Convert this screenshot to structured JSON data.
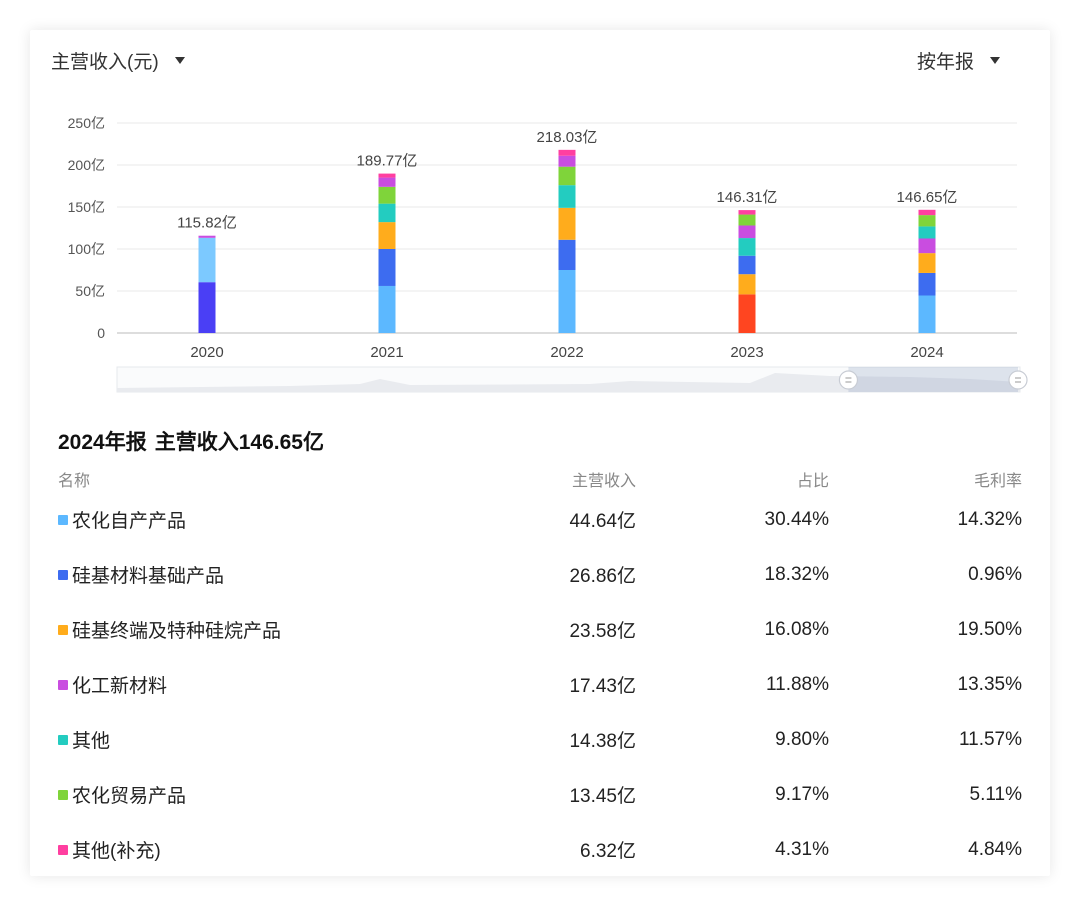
{
  "header": {
    "metric_label": "主营收入(元)",
    "period_label": "按年报"
  },
  "chart_data": {
    "type": "bar",
    "stacked": true,
    "categories": [
      "2020",
      "2021",
      "2022",
      "2023",
      "2024"
    ],
    "yticks": [
      "0",
      "50亿",
      "100亿",
      "150亿",
      "200亿",
      "250亿"
    ],
    "ylim": [
      0,
      250
    ],
    "unit": "亿",
    "totals": [
      "115.82亿",
      "189.77亿",
      "218.03亿",
      "146.31亿",
      "146.65亿"
    ],
    "stacks": [
      [
        {
          "value": 60.5,
          "color": "#4a3ff5"
        },
        {
          "value": 52.8,
          "color": "#7cc9ff"
        },
        {
          "value": 2.52,
          "color": "#c94de0"
        }
      ],
      [
        {
          "value": 56,
          "color": "#5cb8ff"
        },
        {
          "value": 44,
          "color": "#3d6cf0"
        },
        {
          "value": 32,
          "color": "#ffac1c"
        },
        {
          "value": 22,
          "color": "#23ccc0"
        },
        {
          "value": 20,
          "color": "#7fd43a"
        },
        {
          "value": 11,
          "color": "#c94de0"
        },
        {
          "value": 4.77,
          "color": "#ff3fa0"
        }
      ],
      [
        {
          "value": 75,
          "color": "#5cb8ff"
        },
        {
          "value": 36,
          "color": "#3d6cf0"
        },
        {
          "value": 38,
          "color": "#ffac1c"
        },
        {
          "value": 27,
          "color": "#23ccc0"
        },
        {
          "value": 22,
          "color": "#7fd43a"
        },
        {
          "value": 13,
          "color": "#c94de0"
        },
        {
          "value": 7.03,
          "color": "#ff3fa0"
        }
      ],
      [
        {
          "value": 46,
          "color": "#ff4520"
        },
        {
          "value": 24,
          "color": "#ffac1c"
        },
        {
          "value": 22,
          "color": "#3d6cf0"
        },
        {
          "value": 21,
          "color": "#23ccc0"
        },
        {
          "value": 15,
          "color": "#c94de0"
        },
        {
          "value": 13,
          "color": "#7fd43a"
        },
        {
          "value": 5.31,
          "color": "#ff3fa0"
        }
      ],
      [
        {
          "value": 44.64,
          "color": "#5cb8ff"
        },
        {
          "value": 26.86,
          "color": "#3d6cf0"
        },
        {
          "value": 23.58,
          "color": "#ffac1c"
        },
        {
          "value": 17.43,
          "color": "#c94de0"
        },
        {
          "value": 14.38,
          "color": "#23ccc0"
        },
        {
          "value": 13.45,
          "color": "#7fd43a"
        },
        {
          "value": 6.32,
          "color": "#ff3fa0"
        }
      ]
    ],
    "grid": true,
    "zoom_slider": {
      "start": 0.81,
      "end": 1.0
    }
  },
  "summary": {
    "period": "2024年报",
    "title": "主营收入146.65亿"
  },
  "table": {
    "headers": {
      "name": "名称",
      "revenue": "主营收入",
      "share": "占比",
      "margin": "毛利率"
    },
    "rows": [
      {
        "name": "农化自产产品",
        "revenue": "44.64亿",
        "share": "30.44%",
        "margin": "14.32%",
        "color": "#5cb8ff"
      },
      {
        "name": "硅基材料基础产品",
        "revenue": "26.86亿",
        "share": "18.32%",
        "margin": "0.96%",
        "color": "#3d6cf0"
      },
      {
        "name": "硅基终端及特种硅烷产品",
        "revenue": "23.58亿",
        "share": "16.08%",
        "margin": "19.50%",
        "color": "#ffac1c"
      },
      {
        "name": "化工新材料",
        "revenue": "17.43亿",
        "share": "11.88%",
        "margin": "13.35%",
        "color": "#c94de0"
      },
      {
        "name": "其他",
        "revenue": "14.38亿",
        "share": "9.80%",
        "margin": "11.57%",
        "color": "#23ccc0"
      },
      {
        "name": "农化贸易产品",
        "revenue": "13.45亿",
        "share": "9.17%",
        "margin": "5.11%",
        "color": "#7fd43a"
      },
      {
        "name": "其他(补充)",
        "revenue": "6.32亿",
        "share": "4.31%",
        "margin": "4.84%",
        "color": "#ff3fa0"
      }
    ]
  }
}
